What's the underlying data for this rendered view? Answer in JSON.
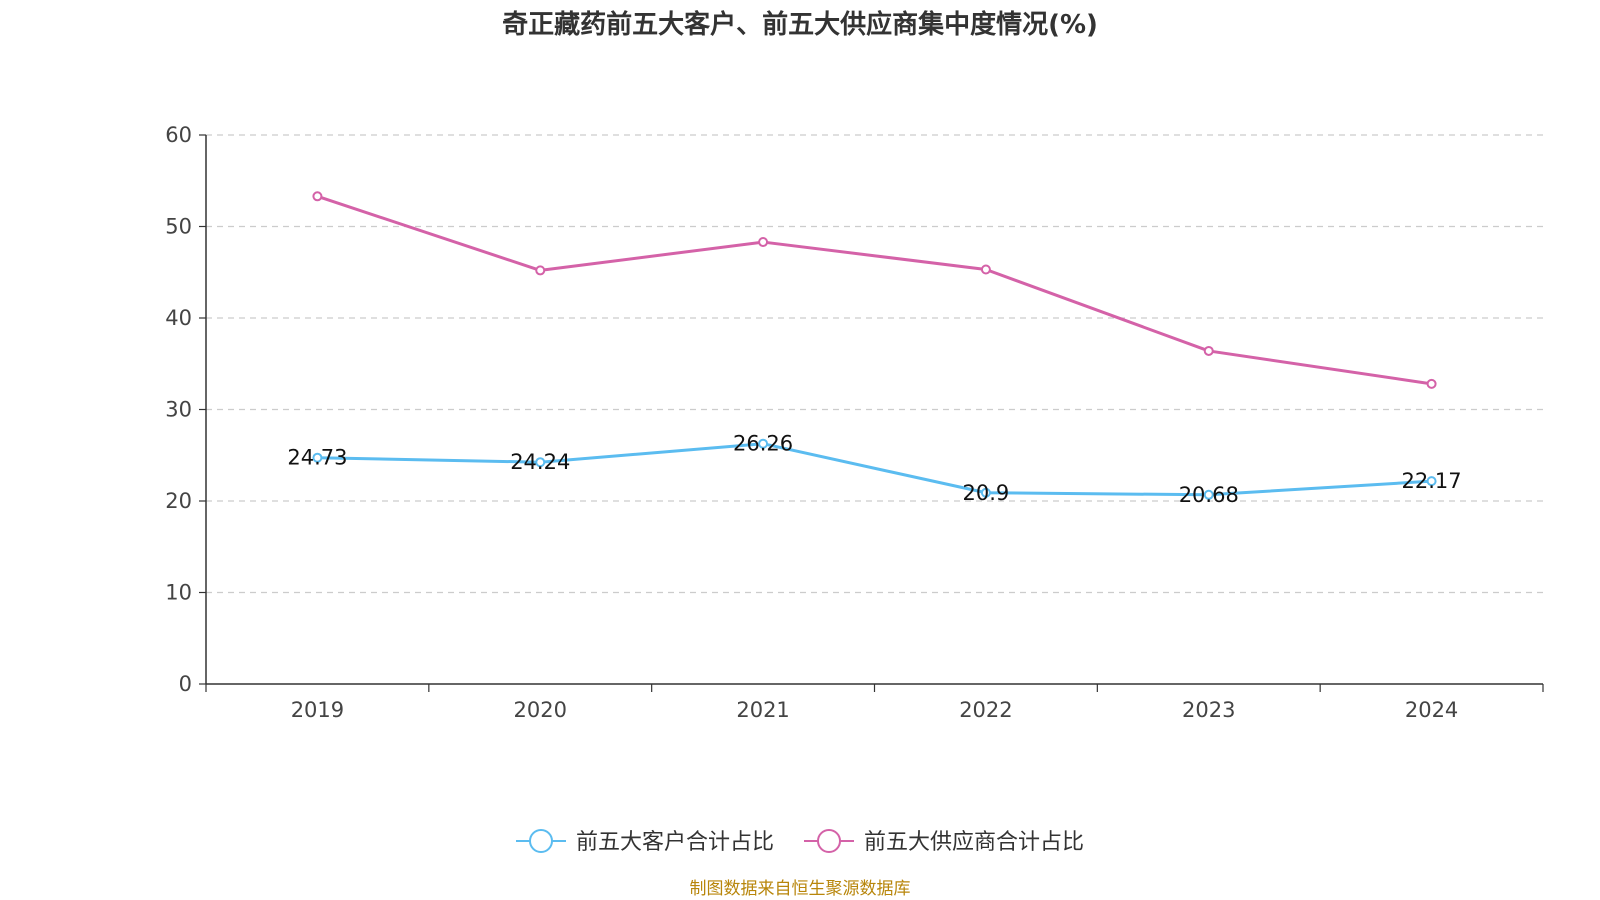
{
  "chart_data": {
    "type": "line",
    "title": "奇正藏药前五大客户、前五大供应商集中度情况(%)",
    "categories": [
      "2019",
      "2020",
      "2021",
      "2022",
      "2023",
      "2024"
    ],
    "series": [
      {
        "name": "前五大客户合计占比",
        "values": [
          24.73,
          24.24,
          26.26,
          20.9,
          20.68,
          22.17
        ],
        "color": "#5bbcf0",
        "show_labels": true
      },
      {
        "name": "前五大供应商合计占比",
        "values": [
          53.3,
          45.2,
          48.3,
          45.3,
          36.4,
          32.8
        ],
        "color": "#d462a8",
        "show_labels": false
      }
    ],
    "yticks": [
      "0",
      "10",
      "20",
      "30",
      "40",
      "50",
      "60"
    ],
    "ylim": [
      0,
      60
    ],
    "grid": true,
    "legend_position": "bottom",
    "source": "制图数据来自恒生聚源数据库"
  }
}
